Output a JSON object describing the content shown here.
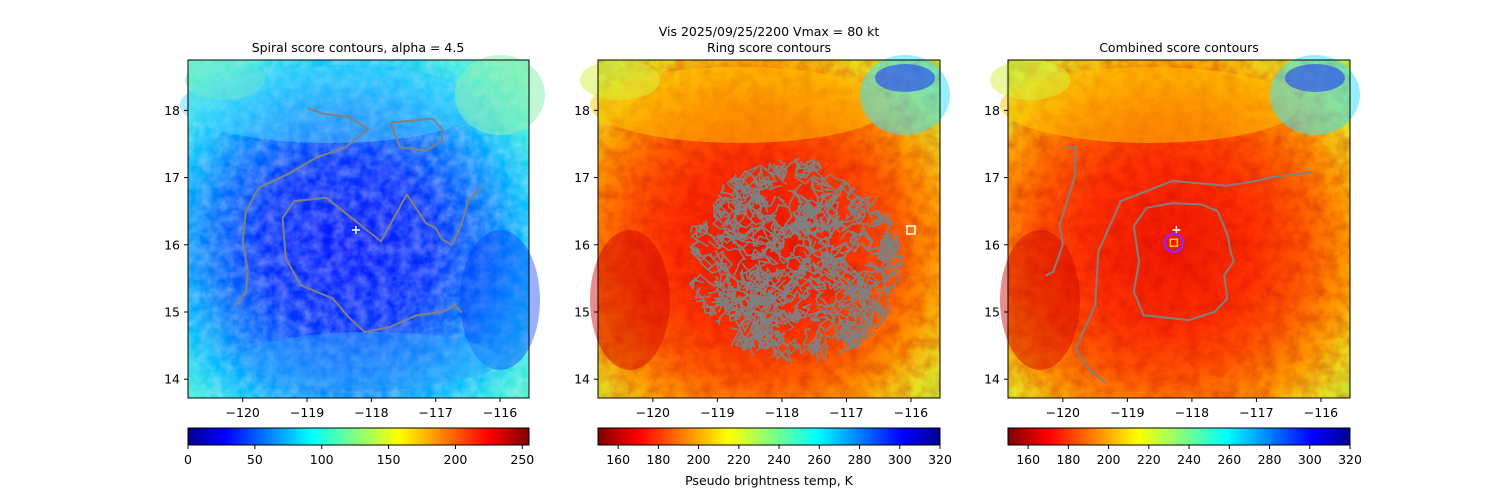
{
  "figure": {
    "suptitle_line1": "Vis  2025/09/25/2200    Vmax = 80 kt"
  },
  "chart_data": [
    {
      "type": "heatmap",
      "title": "Spiral score contours, alpha =  4.5",
      "xlim": [
        -120.85,
        -115.55
      ],
      "ylim": [
        13.72,
        18.75
      ],
      "xticks": [
        -120,
        -119,
        -118,
        -117,
        -116
      ],
      "xtick_labels": [
        "−120",
        "−119",
        "−118",
        "−117",
        "−116"
      ],
      "yticks": [
        14,
        15,
        16,
        17,
        18
      ],
      "ytick_labels": [
        "14",
        "15",
        "16",
        "17",
        "18"
      ],
      "colormap": "jet",
      "colorbar": {
        "range": [
          0,
          255
        ],
        "ticks": [
          0,
          50,
          100,
          150,
          200,
          250
        ],
        "tick_labels": [
          "0",
          "50",
          "100",
          "150",
          "200",
          "250"
        ],
        "reversed": false,
        "label": ""
      },
      "center_marker": {
        "lon": -118.24,
        "lat": 16.22,
        "symbol": "+",
        "color": "#ffffff"
      },
      "contours": [
        [
          [
            -118.98,
            18.03
          ],
          [
            -118.75,
            17.95
          ],
          [
            -118.35,
            17.9
          ],
          [
            -118.05,
            17.72
          ],
          [
            -118.4,
            17.45
          ],
          [
            -118.85,
            17.3
          ],
          [
            -119.3,
            17.05
          ],
          [
            -119.75,
            16.85
          ],
          [
            -119.95,
            16.5
          ],
          [
            -120.0,
            16.05
          ],
          [
            -119.92,
            15.6
          ],
          [
            -119.95,
            15.3
          ],
          [
            -120.1,
            15.1
          ]
        ],
        [
          [
            -117.68,
            17.82
          ],
          [
            -117.35,
            17.85
          ],
          [
            -117.05,
            17.88
          ],
          [
            -116.9,
            17.72
          ],
          [
            -116.9,
            17.55
          ],
          [
            -117.15,
            17.4
          ],
          [
            -117.55,
            17.45
          ],
          [
            -117.62,
            17.6
          ],
          [
            -117.7,
            17.8
          ]
        ],
        [
          [
            -117.85,
            16.05
          ],
          [
            -118.7,
            16.7
          ],
          [
            -119.2,
            16.65
          ],
          [
            -119.38,
            16.4
          ],
          [
            -119.33,
            15.8
          ],
          [
            -119.1,
            15.4
          ],
          [
            -118.6,
            15.2
          ],
          [
            -118.35,
            14.92
          ],
          [
            -118.1,
            14.7
          ],
          [
            -117.7,
            14.78
          ],
          [
            -117.3,
            14.95
          ],
          [
            -116.9,
            15.0
          ],
          [
            -116.7,
            15.1
          ],
          [
            -116.6,
            15.0
          ]
        ],
        [
          [
            -117.85,
            16.05
          ],
          [
            -117.45,
            16.75
          ],
          [
            -117.15,
            16.32
          ],
          [
            -117.0,
            16.25
          ],
          [
            -116.9,
            16.08
          ],
          [
            -116.75,
            16.0
          ],
          [
            -116.6,
            16.3
          ],
          [
            -116.5,
            16.65
          ],
          [
            -116.3,
            16.85
          ]
        ]
      ]
    },
    {
      "type": "heatmap",
      "title": "Ring score contours",
      "xlim": [
        -120.85,
        -115.55
      ],
      "ylim": [
        13.72,
        18.75
      ],
      "xticks": [
        -120,
        -119,
        -118,
        -117,
        -116
      ],
      "xtick_labels": [
        "−120",
        "−119",
        "−118",
        "−117",
        "−116"
      ],
      "yticks": [
        14,
        15,
        16,
        17,
        18
      ],
      "ytick_labels": [
        "14",
        "15",
        "16",
        "17",
        "18"
      ],
      "colormap": "jet_r",
      "colorbar": {
        "range": [
          150,
          320
        ],
        "ticks": [
          160,
          180,
          200,
          220,
          240,
          260,
          280,
          300,
          320
        ],
        "tick_labels": [
          "160",
          "180",
          "200",
          "220",
          "240",
          "260",
          "280",
          "300",
          "320"
        ],
        "reversed": true,
        "label": "Pseudo brightness temp, K"
      },
      "center_marker": {
        "lon": -116.0,
        "lat": 16.22,
        "symbol": "square",
        "color": "#ffffff"
      },
      "ring_region": {
        "lon_range": [
          -119.5,
          -116.1
        ],
        "lat_range": [
          14.2,
          17.3
        ]
      }
    },
    {
      "type": "heatmap",
      "title": "Combined score contours",
      "xlim": [
        -120.85,
        -115.55
      ],
      "ylim": [
        13.72,
        18.75
      ],
      "xticks": [
        -120,
        -119,
        -118,
        -117,
        -116
      ],
      "xtick_labels": [
        "−120",
        "−119",
        "−118",
        "−117",
        "−116"
      ],
      "yticks": [
        14,
        15,
        16,
        17,
        18
      ],
      "ytick_labels": [
        "14",
        "15",
        "16",
        "17",
        "18"
      ],
      "colormap": "jet_r",
      "colorbar": {
        "range": [
          150,
          320
        ],
        "ticks": [
          160,
          180,
          200,
          220,
          240,
          260,
          280,
          300,
          320
        ],
        "tick_labels": [
          "160",
          "180",
          "200",
          "220",
          "240",
          "260",
          "280",
          "300",
          "320"
        ],
        "reversed": true,
        "label": ""
      },
      "center_marker": {
        "lon": -118.24,
        "lat": 16.22,
        "symbol": "+",
        "color": "#ffffff"
      },
      "fix_marker": {
        "lon": -118.28,
        "lat": 16.03,
        "symbol": "square",
        "color": "#ffd400",
        "ring_color": "#a020f0"
      },
      "contours": [
        [
          [
            -119.95,
            17.45
          ],
          [
            -119.8,
            17.45
          ],
          [
            -119.82,
            17.0
          ],
          [
            -119.95,
            16.6
          ],
          [
            -120.05,
            16.3
          ],
          [
            -120.0,
            16.0
          ],
          [
            -120.15,
            15.6
          ],
          [
            -120.25,
            15.55
          ]
        ],
        [
          [
            -119.35,
            13.95
          ],
          [
            -119.6,
            14.15
          ],
          [
            -119.8,
            14.45
          ],
          [
            -119.5,
            15.1
          ],
          [
            -119.45,
            15.9
          ],
          [
            -119.1,
            16.65
          ],
          [
            -118.3,
            16.95
          ],
          [
            -117.45,
            16.88
          ],
          [
            -117.0,
            16.95
          ],
          [
            -116.8,
            17.0
          ],
          [
            -116.4,
            17.05
          ],
          [
            -116.15,
            17.08
          ]
        ],
        [
          [
            -118.75,
            14.95
          ],
          [
            -118.05,
            14.88
          ],
          [
            -117.65,
            15.0
          ],
          [
            -117.45,
            15.2
          ],
          [
            -117.5,
            15.55
          ],
          [
            -117.35,
            15.75
          ],
          [
            -117.4,
            15.9
          ],
          [
            -117.45,
            16.15
          ],
          [
            -117.6,
            16.5
          ],
          [
            -117.85,
            16.6
          ],
          [
            -118.3,
            16.62
          ],
          [
            -118.7,
            16.55
          ],
          [
            -118.9,
            16.28
          ],
          [
            -118.82,
            15.75
          ],
          [
            -118.9,
            15.3
          ],
          [
            -118.75,
            14.95
          ]
        ]
      ]
    }
  ]
}
